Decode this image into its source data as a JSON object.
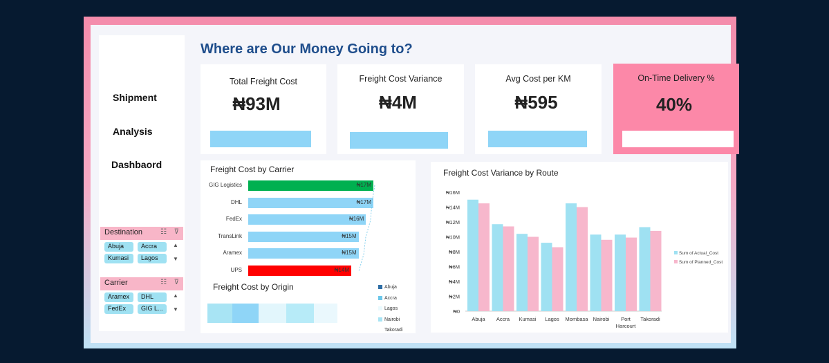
{
  "dashboard": {
    "title": "Where are Our Money Going to?",
    "side_title": [
      "Shipment",
      "Analysis",
      "Dashbaord"
    ]
  },
  "slicers": {
    "destination": {
      "title": "Destination",
      "items": [
        "Abuja",
        "Accra",
        "Kumasi",
        "Lagos"
      ]
    },
    "carrier": {
      "title": "Carrier",
      "items": [
        "Aramex",
        "DHL",
        "FedEx",
        "GIG L..."
      ]
    }
  },
  "kpis": [
    {
      "label": "Total Freight Cost",
      "value": "₦93M"
    },
    {
      "label": "Freight Cost Variance",
      "value": "₦4M"
    },
    {
      "label": "Avg Cost per KM",
      "value": "₦595"
    },
    {
      "label": "On-Time Delivery %",
      "value": "40%"
    }
  ],
  "colors": {
    "accent_pink": "#fc88a8",
    "bar_blue": "#8fd5f7",
    "title_blue": "#1f4e8c",
    "green": "#00b050",
    "red": "#ff0000",
    "planned_pink": "#f7b7cc",
    "actual_blue": "#9fe1f2"
  },
  "carrier_chart": {
    "title": "Freight Cost by Carrier",
    "carriers": [
      "GIG Logistics",
      "DHL",
      "FedEx",
      "TransLink",
      "Aramex",
      "UPS"
    ],
    "values": [
      17,
      17,
      16,
      15,
      15,
      14
    ],
    "labels": [
      "₦17M",
      "₦17M",
      "₦16M",
      "₦15M",
      "₦15M",
      "₦14M"
    ],
    "colors": [
      "#00b050",
      "#8fd5f7",
      "#8fd5f7",
      "#8fd5f7",
      "#8fd5f7",
      "#ff0000"
    ]
  },
  "origin_chart": {
    "title": "Freight Cost by Origin",
    "legend": [
      "Abuja",
      "Accra",
      "Lagos",
      "Nairobi",
      "Takoradi"
    ],
    "legend_colors": [
      "#2f6ea5",
      "#6cc7ea",
      "#eafafe",
      "#a8e4f4",
      "#ffffff"
    ]
  },
  "chart_data": {
    "type": "bar",
    "title": "Freight Cost  Variance by Route",
    "categories": [
      "Abuja",
      "Accra",
      "Kumasi",
      "Lagos",
      "Mombasa",
      "Nairobi",
      "Port Harcourt",
      "Takoradi"
    ],
    "series": [
      {
        "name": "Sum of Actual_Cost",
        "values": [
          15.0,
          11.7,
          10.4,
          9.2,
          14.5,
          10.3,
          10.3,
          11.3
        ],
        "color": "#9fe1f2"
      },
      {
        "name": "Sum of Planned_Cost",
        "values": [
          14.5,
          11.4,
          10.0,
          8.6,
          14.0,
          9.6,
          9.9,
          10.8
        ],
        "color": "#f7b7cc"
      }
    ],
    "yticks": [
      "₦0",
      "₦2M",
      "₦4M",
      "₦6M",
      "₦8M",
      "₦10M",
      "₦12M",
      "₦14M",
      "₦16M"
    ],
    "ylim": [
      0,
      16
    ],
    "legend_position": "right"
  }
}
